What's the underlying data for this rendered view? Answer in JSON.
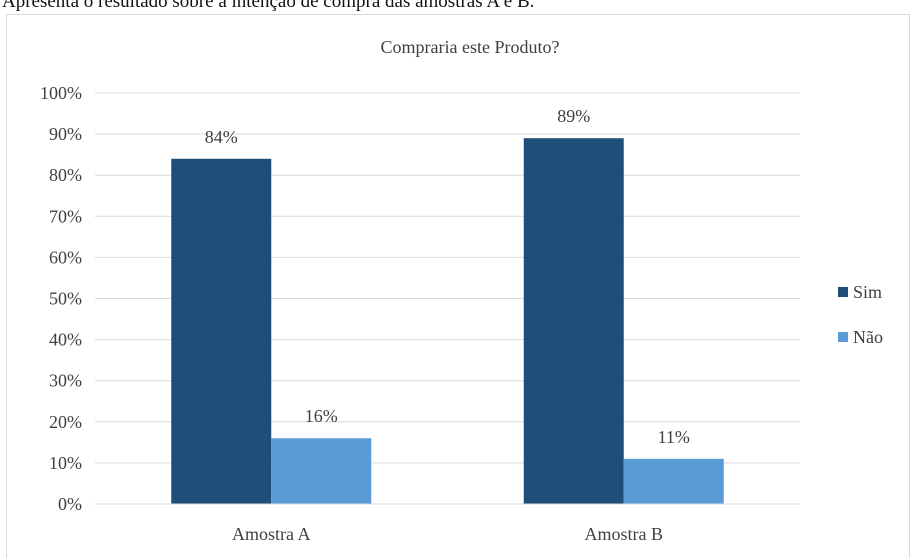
{
  "caption": "Apresenta o resultado sobre a intenção de compra das amostras A e B.",
  "chart_data": {
    "type": "bar",
    "title": "Compraria este Produto?",
    "categories": [
      "Amostra A",
      "Amostra B"
    ],
    "series": [
      {
        "name": "Sim",
        "values": [
          84,
          89
        ],
        "labels": [
          "84%",
          "89%"
        ],
        "color": "#1f4e79"
      },
      {
        "name": "Não",
        "values": [
          16,
          11
        ],
        "labels": [
          "16%",
          "11%"
        ],
        "color": "#5b9bd5"
      }
    ],
    "ylim": [
      0,
      100
    ],
    "yticks": [
      "0%",
      "10%",
      "20%",
      "30%",
      "40%",
      "50%",
      "60%",
      "70%",
      "80%",
      "90%",
      "100%"
    ],
    "grid": true,
    "legend_position": "right"
  }
}
